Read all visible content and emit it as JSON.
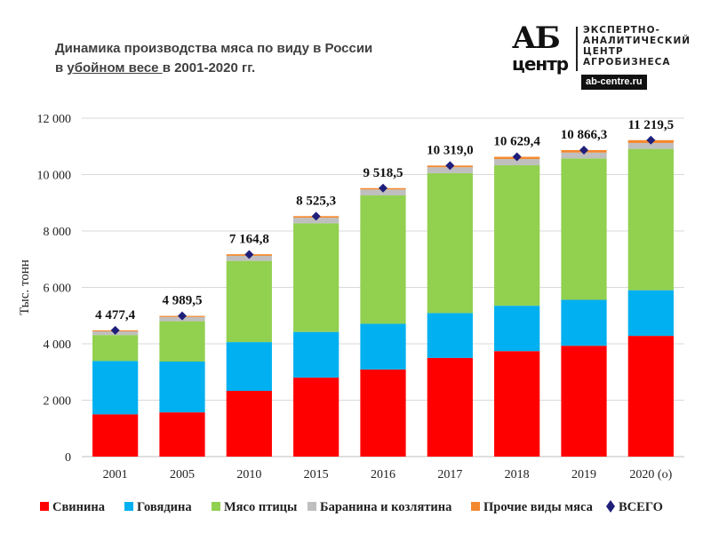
{
  "header": {
    "title_line1": "Динамика производства мяса по виду в России",
    "title_line2_pre": "в ",
    "title_line2_under": "убойном весе ",
    "title_line2_post": "в 2001-2020 гг."
  },
  "logo": {
    "big": "АБ",
    "small": "центр",
    "line1": "ЭКСПЕРТНО-",
    "line2": "АНАЛИТИЧЕСКИЙ",
    "line3": "ЦЕНТР",
    "line4": "АГРОБИЗНЕСА",
    "url": "ab-centre.ru"
  },
  "chart_data": {
    "type": "bar",
    "stacked": true,
    "ylabel": "Тыс. тонн",
    "ylim": [
      0,
      12000
    ],
    "yticks": [
      0,
      2000,
      4000,
      6000,
      8000,
      10000,
      12000
    ],
    "ytick_labels": [
      "0",
      "2 000",
      "4 000",
      "6 000",
      "8 000",
      "10 000",
      "12 000"
    ],
    "grid": true,
    "legend_position": "bottom",
    "categories": [
      "2001",
      "2005",
      "2010",
      "2015",
      "2016",
      "2017",
      "2018",
      "2019",
      "2020 (о)"
    ],
    "series": [
      {
        "name": "Свинина",
        "color": "#ff0000",
        "values": [
          1500,
          1570,
          2330,
          2800,
          3090,
          3500,
          3740,
          3930,
          4280
        ]
      },
      {
        "name": "Говядина",
        "color": "#00b0f0",
        "values": [
          1890,
          1800,
          1730,
          1620,
          1620,
          1590,
          1610,
          1630,
          1620
        ]
      },
      {
        "name": "Мясо птицы",
        "color": "#92d050",
        "values": [
          920,
          1430,
          2880,
          3850,
          4550,
          4960,
          4980,
          5010,
          5010
        ]
      },
      {
        "name": "Баранина и козлятина",
        "color": "#bfbfbf",
        "values": [
          130,
          150,
          180,
          200,
          210,
          210,
          220,
          210,
          210
        ]
      },
      {
        "name": "Прочие виды мяса",
        "color": "#f4882d",
        "values": [
          37,
          40,
          55,
          55,
          49,
          59,
          80,
          86,
          100
        ]
      }
    ],
    "total": {
      "name": "ВСЕГО",
      "color": "#1f1f7a",
      "values": [
        4477.4,
        4989.5,
        7164.8,
        8525.3,
        9518.5,
        10319.0,
        10629.4,
        10866.3,
        11219.5
      ],
      "labels": [
        "4 477,4",
        "4 989,5",
        "7 164,8",
        "8 525,3",
        "9 518,5",
        "10 319,0",
        "10 629,4",
        "10 866,3",
        "11 219,5"
      ]
    }
  }
}
